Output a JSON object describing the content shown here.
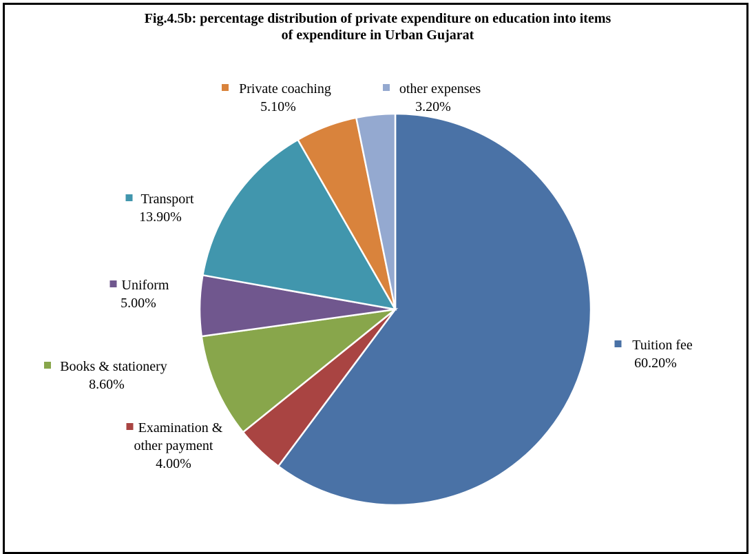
{
  "chart_data": {
    "type": "pie",
    "title_lines": [
      "Fig.4.5b: percentage distribution of private expenditure on education into items",
      "of expenditure in Urban Gujarat"
    ],
    "slices": [
      {
        "name": "Tuition fee",
        "label_lines": [
          "Tuition fee"
        ],
        "value": 60.2,
        "value_label": "60.20%",
        "color": "#4A72A6"
      },
      {
        "name": "Examination & other payment",
        "label_lines": [
          "Examination &",
          "other payment"
        ],
        "value": 4.0,
        "value_label": "4.00%",
        "color": "#A94442"
      },
      {
        "name": "Books & stationery",
        "label_lines": [
          "Books & stationery"
        ],
        "value": 8.6,
        "value_label": "8.60%",
        "color": "#88A64B"
      },
      {
        "name": "Uniform",
        "label_lines": [
          "Uniform"
        ],
        "value": 5.0,
        "value_label": "5.00%",
        "color": "#70578E"
      },
      {
        "name": "Transport",
        "label_lines": [
          "Transport"
        ],
        "value": 13.9,
        "value_label": "13.90%",
        "color": "#4196AD"
      },
      {
        "name": "Private coaching",
        "label_lines": [
          "Private coaching"
        ],
        "value": 5.1,
        "value_label": "5.10%",
        "color": "#D9833C"
      },
      {
        "name": "other expenses",
        "label_lines": [
          "other expenses"
        ],
        "value": 3.2,
        "value_label": "3.20%",
        "color": "#94A9D0"
      }
    ]
  }
}
